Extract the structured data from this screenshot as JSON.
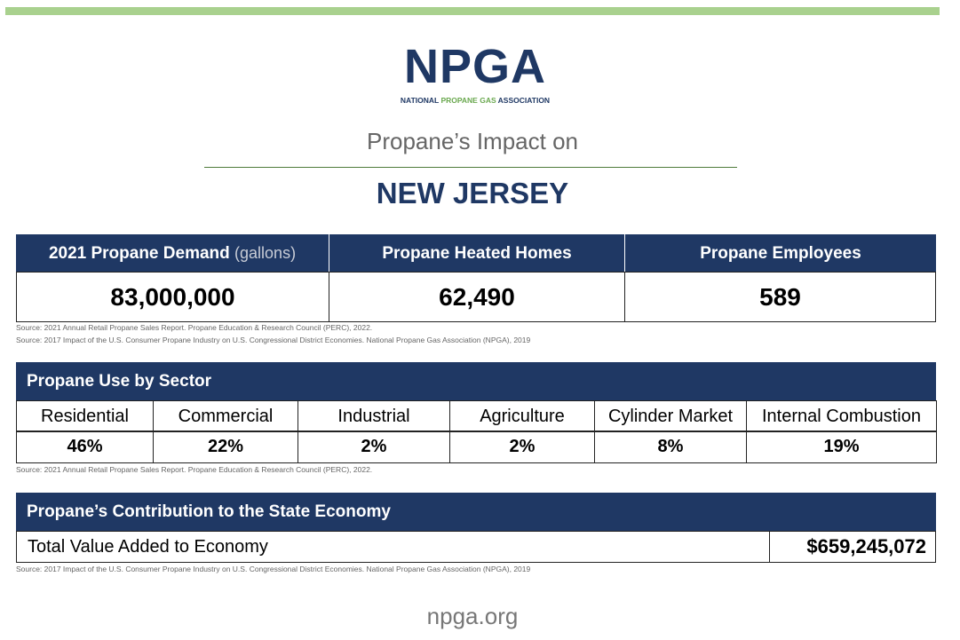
{
  "logo": {
    "mark": "NPGA",
    "tagline": [
      "NATIONAL",
      "PROPANE GAS",
      "ASSOCIATION"
    ]
  },
  "subtitle": "Propane’s Impact on",
  "state": "NEW JERSEY",
  "summary": {
    "headers": [
      {
        "label": "2021 Propane Demand",
        "unit": "(gallons)"
      },
      {
        "label": "Propane Heated Homes"
      },
      {
        "label": "Propane Employees"
      }
    ],
    "values": [
      "83,000,000",
      "62,490",
      "589"
    ],
    "sources": [
      "Source: 2021 Annual Retail Propane Sales Report. Propane Education & Research Council (PERC), 2022.",
      "Source: 2017 Impact of the U.S. Consumer Propane Industry on U.S. Congressional District Economies. National Propane Gas Association (NPGA), 2019"
    ]
  },
  "sectors": {
    "title": "Propane Use by Sector",
    "labels": [
      "Residential",
      "Commercial",
      "Industrial",
      "Agriculture",
      "Cylinder Market",
      "Internal Combustion"
    ],
    "values": [
      "46%",
      "22%",
      "2%",
      "2%",
      "8%",
      "19%"
    ],
    "source": "Source: 2021 Annual Retail Propane Sales Report. Propane Education & Research Council (PERC), 2022."
  },
  "economy": {
    "title": "Propane’s Contribution to the State Economy",
    "label": "Total Value Added to Economy",
    "value": "$659,245,072",
    "source": "Source: 2017 Impact of the U.S. Consumer Propane Industry on U.S. Congressional District Economies. National Propane Gas Association (NPGA), 2019"
  },
  "footer": "npga.org"
}
